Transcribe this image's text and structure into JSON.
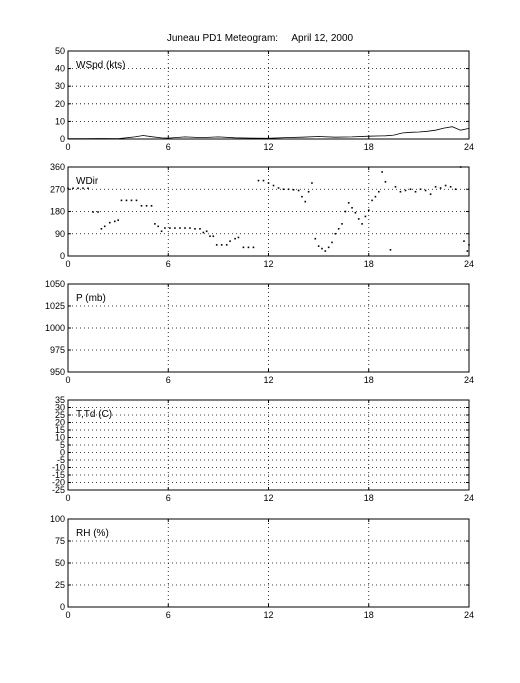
{
  "title": "Juneau PD1 Meteogram:     April 12, 2000",
  "chart_data": [
    {
      "type": "line",
      "panel_label": "WSpd (kts)",
      "xlim": [
        0,
        24
      ],
      "xticks": [
        0,
        6,
        12,
        18,
        24
      ],
      "ylim": [
        0,
        50
      ],
      "yticks": [
        0,
        10,
        20,
        30,
        40,
        50
      ],
      "grid": true,
      "series": [
        {
          "values": [
            [
              0,
              0.2
            ],
            [
              1,
              0.2
            ],
            [
              2,
              0.3
            ],
            [
              3,
              0.2
            ],
            [
              4,
              1.2
            ],
            [
              4.5,
              2.0
            ],
            [
              5,
              1.3
            ],
            [
              5.6,
              0.6
            ],
            [
              6,
              0.5
            ],
            [
              7,
              1.2
            ],
            [
              8,
              0.8
            ],
            [
              9,
              1.2
            ],
            [
              10,
              0.7
            ],
            [
              11,
              0.5
            ],
            [
              12,
              0.4
            ],
            [
              13,
              0.8
            ],
            [
              14,
              1.0
            ],
            [
              15,
              1.4
            ],
            [
              16,
              1.0
            ],
            [
              17,
              1.2
            ],
            [
              18,
              1.6
            ],
            [
              19,
              1.8
            ],
            [
              19.5,
              2.2
            ],
            [
              20,
              3.4
            ],
            [
              20.5,
              3.8
            ],
            [
              21,
              4.0
            ],
            [
              21.5,
              4.4
            ],
            [
              22,
              5.0
            ],
            [
              22.5,
              6.2
            ],
            [
              23,
              7.0
            ],
            [
              23.5,
              5.0
            ],
            [
              24,
              6.0
            ]
          ]
        }
      ]
    },
    {
      "type": "scatter",
      "panel_label": "WDir",
      "xlim": [
        0,
        24
      ],
      "xticks": [
        0,
        6,
        12,
        18,
        24
      ],
      "ylim": [
        0,
        360
      ],
      "yticks": [
        0,
        90,
        180,
        270,
        360
      ],
      "grid": true,
      "series": [
        {
          "values": [
            [
              0.0,
              274
            ],
            [
              0.3,
              274
            ],
            [
              0.6,
              274
            ],
            [
              0.9,
              274
            ],
            [
              1.2,
              274
            ],
            [
              1.5,
              178
            ],
            [
              1.8,
              178
            ],
            [
              2.0,
              110
            ],
            [
              2.2,
              120
            ],
            [
              2.5,
              135
            ],
            [
              2.8,
              140
            ],
            [
              3.0,
              145
            ],
            [
              3.2,
              225
            ],
            [
              3.5,
              225
            ],
            [
              3.8,
              225
            ],
            [
              4.1,
              225
            ],
            [
              4.4,
              203
            ],
            [
              4.7,
              203
            ],
            [
              5.0,
              203
            ],
            [
              5.2,
              130
            ],
            [
              5.4,
              120
            ],
            [
              5.6,
              100
            ],
            [
              5.8,
              113
            ],
            [
              6.1,
              113
            ],
            [
              6.4,
              113
            ],
            [
              6.7,
              113
            ],
            [
              7.0,
              113
            ],
            [
              7.3,
              113
            ],
            [
              7.6,
              110
            ],
            [
              7.9,
              110
            ],
            [
              8.1,
              95
            ],
            [
              8.3,
              100
            ],
            [
              8.5,
              80
            ],
            [
              8.7,
              80
            ],
            [
              8.9,
              45
            ],
            [
              9.2,
              45
            ],
            [
              9.5,
              45
            ],
            [
              9.7,
              60
            ],
            [
              10.0,
              70
            ],
            [
              10.2,
              75
            ],
            [
              10.5,
              35
            ],
            [
              10.8,
              35
            ],
            [
              11.1,
              35
            ],
            [
              11.4,
              305
            ],
            [
              11.7,
              305
            ],
            [
              12.0,
              295
            ],
            [
              12.3,
              285
            ],
            [
              12.6,
              275
            ],
            [
              12.9,
              270
            ],
            [
              13.2,
              270
            ],
            [
              13.5,
              268
            ],
            [
              13.8,
              265
            ],
            [
              14.0,
              240
            ],
            [
              14.2,
              220
            ],
            [
              14.4,
              260
            ],
            [
              14.6,
              295
            ],
            [
              14.8,
              70
            ],
            [
              15.0,
              40
            ],
            [
              15.2,
              30
            ],
            [
              15.4,
              20
            ],
            [
              15.6,
              35
            ],
            [
              15.8,
              55
            ],
            [
              16.0,
              90
            ],
            [
              16.2,
              110
            ],
            [
              16.4,
              130
            ],
            [
              16.6,
              180
            ],
            [
              16.8,
              215
            ],
            [
              17.0,
              195
            ],
            [
              17.2,
              175
            ],
            [
              17.4,
              150
            ],
            [
              17.6,
              130
            ],
            [
              17.8,
              160
            ],
            [
              18.0,
              185
            ],
            [
              18.2,
              225
            ],
            [
              18.4,
              240
            ],
            [
              18.6,
              260
            ],
            [
              18.8,
              340
            ],
            [
              19.0,
              300
            ],
            [
              19.3,
              25
            ],
            [
              19.6,
              280
            ],
            [
              19.9,
              260
            ],
            [
              20.2,
              265
            ],
            [
              20.5,
              270
            ],
            [
              20.8,
              260
            ],
            [
              21.1,
              270
            ],
            [
              21.4,
              265
            ],
            [
              21.7,
              250
            ],
            [
              22.0,
              280
            ],
            [
              22.3,
              275
            ],
            [
              22.6,
              285
            ],
            [
              22.9,
              280
            ],
            [
              23.2,
              270
            ],
            [
              23.5,
              360
            ],
            [
              23.7,
              60
            ],
            [
              23.9,
              20
            ],
            [
              24.0,
              45
            ]
          ]
        }
      ]
    },
    {
      "type": "line",
      "panel_label": "P (mb)",
      "xlim": [
        0,
        24
      ],
      "xticks": [
        0,
        6,
        12,
        18,
        24
      ],
      "ylim": [
        950,
        1050
      ],
      "yticks": [
        950,
        975,
        1000,
        1025,
        1050
      ],
      "grid": true,
      "series": []
    },
    {
      "type": "line",
      "panel_label": "T,Td (C)",
      "xlim": [
        0,
        24
      ],
      "xticks": [
        0,
        6,
        12,
        18,
        24
      ],
      "ylim": [
        -25,
        35
      ],
      "yticks": [
        -25,
        -15,
        -5,
        5,
        15,
        25,
        35
      ],
      "ytick_labels": [
        "-25",
        "-20",
        "-15",
        "-10",
        "-5",
        "0",
        "5",
        "10",
        "15",
        "20",
        "25",
        "30",
        "35"
      ],
      "ytick_values": [
        -25,
        -20,
        -15,
        -10,
        -5,
        0,
        5,
        10,
        15,
        20,
        25,
        30,
        35
      ],
      "grid": true,
      "series": []
    },
    {
      "type": "line",
      "panel_label": "RH (%)",
      "xlim": [
        0,
        24
      ],
      "xticks": [
        0,
        6,
        12,
        18,
        24
      ],
      "ylim": [
        0,
        100
      ],
      "yticks": [
        0,
        25,
        50,
        75,
        100
      ],
      "ytick_labels": [
        "0",
        "25",
        "50",
        "75",
        "100"
      ],
      "ytick_values": [
        0,
        25,
        50,
        75,
        100
      ],
      "grid": true,
      "series": []
    }
  ]
}
